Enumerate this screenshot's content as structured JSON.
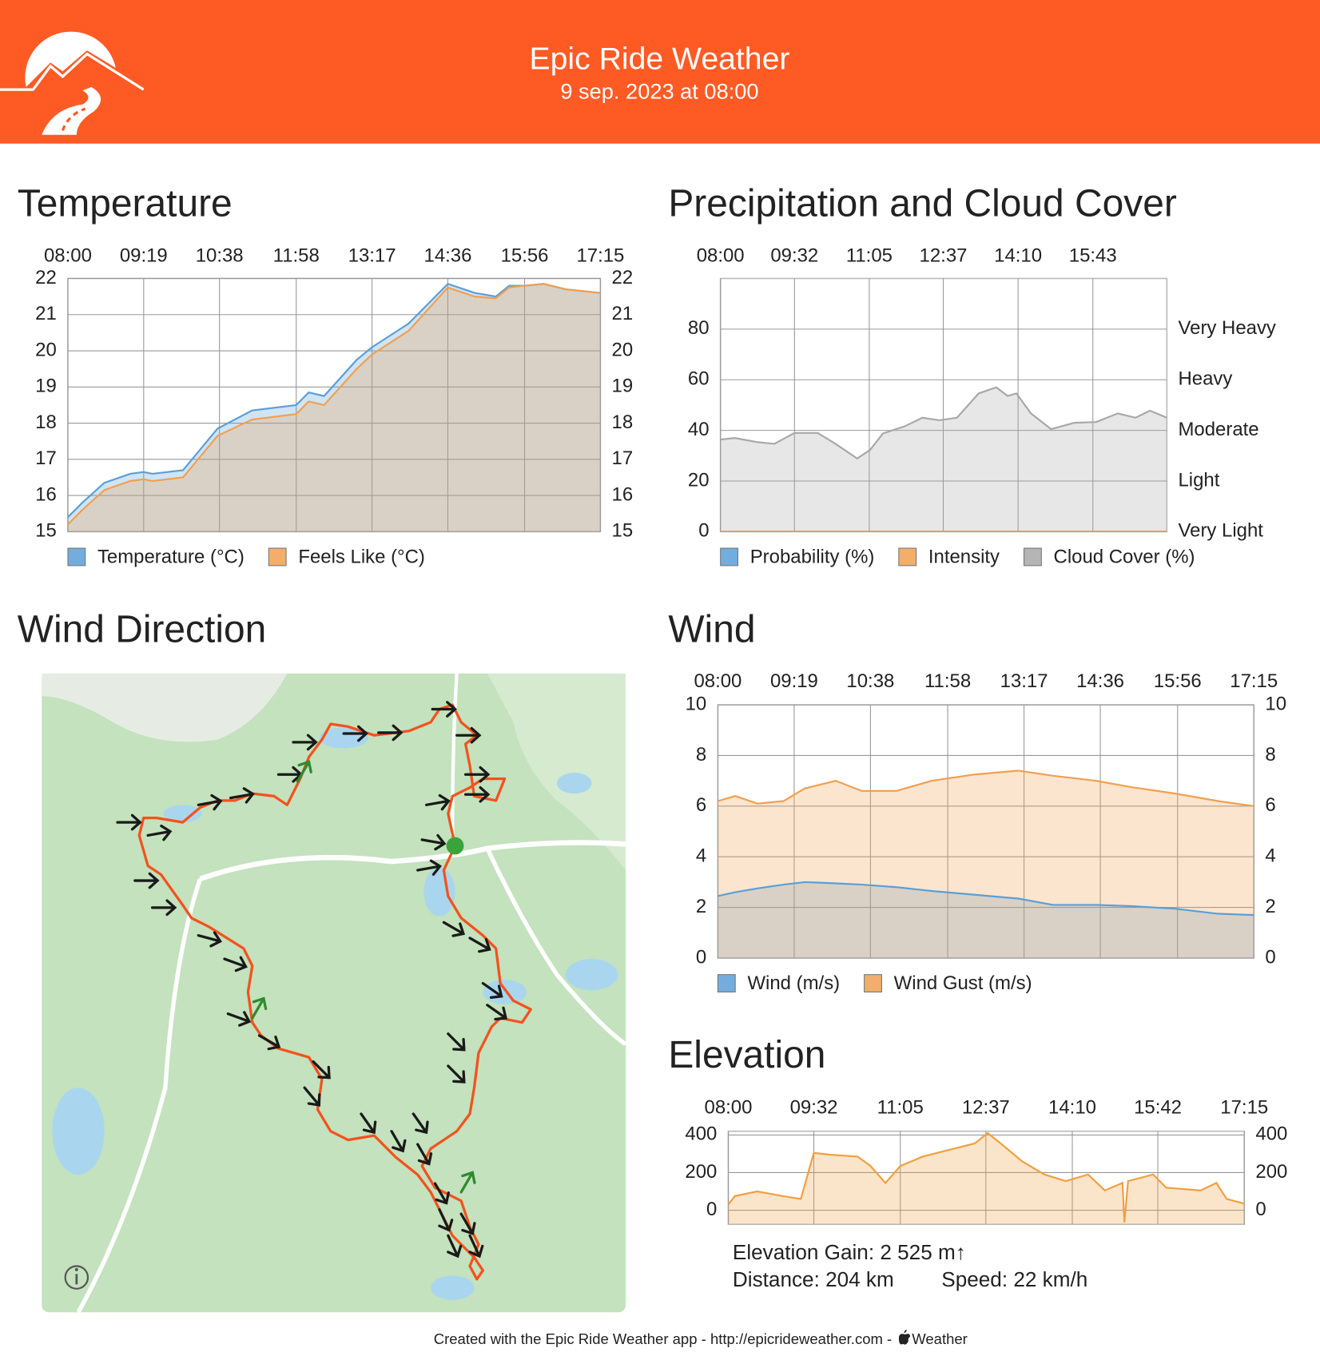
{
  "header": {
    "title": "Epic Ride Weather",
    "subtitle": "9 sep. 2023 at 08:00"
  },
  "chart_data": [
    {
      "type": "area",
      "title": "Temperature",
      "x": [
        "08:00",
        "08:15",
        "08:38",
        "09:05",
        "09:19",
        "09:28",
        "10:00",
        "10:36",
        "11:12",
        "11:58",
        "12:11",
        "12:27",
        "13:01",
        "13:17",
        "13:55",
        "14:36",
        "15:04",
        "15:26",
        "15:40",
        "15:56",
        "16:16",
        "16:39",
        "17:15"
      ],
      "xlim": [
        "08:00",
        "17:15"
      ],
      "xticks": [
        "08:00",
        "09:19",
        "10:38",
        "11:58",
        "13:17",
        "14:36",
        "15:56",
        "17:15"
      ],
      "ylim": [
        15,
        22
      ],
      "yticks": [
        15,
        16,
        17,
        18,
        19,
        20,
        21,
        22
      ],
      "y2lim": [
        15,
        22
      ],
      "y2ticks": [
        15,
        16,
        17,
        18,
        19,
        20,
        21,
        22
      ],
      "grid": true,
      "series": [
        {
          "name": "Temperature (°C)",
          "color": "#5a9fd8",
          "values": [
            15.4,
            15.8,
            16.35,
            16.6,
            16.65,
            16.6,
            16.7,
            17.85,
            18.35,
            18.5,
            18.85,
            18.75,
            19.75,
            20.1,
            20.75,
            21.85,
            21.6,
            21.5,
            21.8,
            21.8,
            21.85,
            21.7,
            21.6
          ]
        },
        {
          "name": "Feels Like (°C)",
          "color": "#f0a050",
          "values": [
            15.2,
            15.6,
            16.15,
            16.4,
            16.45,
            16.4,
            16.5,
            17.65,
            18.1,
            18.25,
            18.6,
            18.5,
            19.5,
            19.9,
            20.55,
            21.75,
            21.5,
            21.45,
            21.75,
            21.8,
            21.85,
            21.7,
            21.6
          ]
        }
      ]
    },
    {
      "type": "area",
      "title": "Precipitation and Cloud Cover",
      "x": [
        "08:00",
        "08:18",
        "08:45",
        "09:07",
        "09:32",
        "10:01",
        "10:23",
        "10:50",
        "11:06",
        "11:22",
        "11:49",
        "12:11",
        "12:32",
        "12:54",
        "13:21",
        "13:43",
        "13:57",
        "14:08",
        "14:26",
        "14:51",
        "15:20",
        "15:47",
        "16:14",
        "16:36",
        "16:54",
        "17:15"
      ],
      "xlim": [
        "08:00",
        "17:15"
      ],
      "xticks": [
        "08:00",
        "09:32",
        "11:05",
        "12:37",
        "14:10",
        "15:43"
      ],
      "ylim": [
        0,
        100
      ],
      "yticks": [
        0,
        20,
        40,
        60,
        80
      ],
      "y2lim": [
        0,
        100
      ],
      "y2ticks": [
        {
          "value": 0,
          "label": "Very Light"
        },
        {
          "value": 20,
          "label": "Light"
        },
        {
          "value": 40,
          "label": "Moderate"
        },
        {
          "value": 60,
          "label": "Heavy"
        },
        {
          "value": 80,
          "label": "Very Heavy"
        }
      ],
      "grid": true,
      "series": [
        {
          "name": "Probability (%)",
          "color": "#5a9fd8",
          "values": [
            0,
            0,
            0,
            0,
            0,
            0,
            0,
            0,
            0,
            0,
            0,
            0,
            0,
            0,
            0,
            0,
            0,
            0,
            0,
            0,
            0,
            0,
            0,
            0,
            0,
            0
          ]
        },
        {
          "name": "Intensity",
          "color": "#f0a050",
          "axis": "y2",
          "values": [
            0,
            0,
            0,
            0,
            0,
            0,
            0,
            0,
            0,
            0,
            0,
            0,
            0,
            0,
            0,
            0,
            0,
            0,
            0,
            0,
            0,
            0,
            0,
            0,
            0,
            0
          ]
        },
        {
          "name": "Cloud Cover (%)",
          "color": "#a8a8a8",
          "values": [
            36.4,
            37,
            35.4,
            34.7,
            39,
            39,
            34.7,
            28.9,
            32.3,
            38.8,
            41.6,
            45,
            44,
            45,
            54.6,
            57,
            53.6,
            54.6,
            46.7,
            40.5,
            43,
            43.3,
            46.7,
            45,
            47.8,
            45
          ]
        }
      ]
    },
    {
      "type": "area",
      "title": "Wind",
      "x": [
        "08:00",
        "08:18",
        "08:41",
        "09:08",
        "09:30",
        "10:02",
        "10:29",
        "11:05",
        "11:41",
        "12:26",
        "13:11",
        "13:47",
        "14:32",
        "15:08",
        "15:53",
        "16:38",
        "17:15"
      ],
      "xlim": [
        "08:00",
        "17:15"
      ],
      "xticks": [
        "08:00",
        "09:19",
        "10:38",
        "11:58",
        "13:17",
        "14:36",
        "15:56",
        "17:15"
      ],
      "ylim": [
        0,
        10
      ],
      "yticks": [
        0,
        2,
        4,
        6,
        8,
        10
      ],
      "y2lim": [
        0,
        10
      ],
      "y2ticks": [
        0,
        2,
        4,
        6,
        8,
        10
      ],
      "grid": true,
      "series": [
        {
          "name": "Wind (m/s)",
          "color": "#5a9fd8",
          "values": [
            2.45,
            2.6,
            2.75,
            2.9,
            3.0,
            2.95,
            2.9,
            2.8,
            2.65,
            2.5,
            2.35,
            2.1,
            2.1,
            2.05,
            1.95,
            1.75,
            1.7
          ]
        },
        {
          "name": "Wind Gust (m/s)",
          "color": "#f0a050",
          "values": [
            6.2,
            6.4,
            6.1,
            6.2,
            6.7,
            7.0,
            6.6,
            6.6,
            7.0,
            7.25,
            7.4,
            7.2,
            7.0,
            6.75,
            6.5,
            6.2,
            6.0
          ]
        }
      ]
    },
    {
      "type": "area",
      "title": "Elevation",
      "x": [
        "08:00",
        "08:07",
        "08:31",
        "08:59",
        "09:18",
        "09:32",
        "09:50",
        "10:19",
        "10:33",
        "10:49",
        "11:05",
        "11:29",
        "11:57",
        "12:25",
        "12:39",
        "12:53",
        "13:16",
        "13:40",
        "14:03",
        "14:27",
        "14:45",
        "15:04",
        "15:06",
        "15:10",
        "15:37",
        "15:51",
        "16:28",
        "16:45",
        "16:56",
        "17:15"
      ],
      "xlim": [
        "08:00",
        "17:15"
      ],
      "xticks": [
        "08:00",
        "09:32",
        "11:05",
        "12:37",
        "14:10",
        "15:42",
        "17:15"
      ],
      "ylim": [
        -75,
        420
      ],
      "yticks": [
        0,
        200,
        400
      ],
      "y2lim": [
        -75,
        420
      ],
      "y2ticks": [
        0,
        200,
        400
      ],
      "grid": true,
      "series": [
        {
          "color": "#f0a040",
          "values": [
            30,
            75,
            100,
            75,
            60,
            305,
            295,
            285,
            235,
            145,
            235,
            285,
            320,
            355,
            410,
            355,
            260,
            190,
            155,
            190,
            105,
            145,
            -65,
            155,
            190,
            120,
            105,
            145,
            60,
            35
          ]
        }
      ]
    }
  ],
  "map": {
    "title": "Wind Direction"
  },
  "route_stats": {
    "elevation_gain": "Elevation Gain: 2 525 m↑",
    "distance": "Distance: 204 km",
    "speed": "Speed: 22 km/h"
  },
  "footer": {
    "text": "Created with the Epic Ride Weather app - http://epicrideweather.com -",
    "brand": "Weather"
  }
}
